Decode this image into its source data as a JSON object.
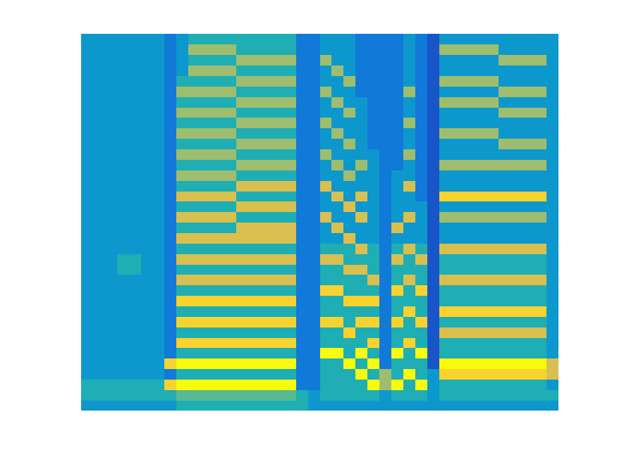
{
  "chart_data": {
    "type": "heatmap",
    "tick_labels": false,
    "color": "parula",
    "zlim": [
      0,
      9
    ],
    "cells": [
      [
        3,
        3,
        3,
        3,
        3,
        3,
        3,
        3,
        4,
        4,
        4,
        4,
        4,
        4,
        4,
        4,
        4,
        4,
        4,
        3,
        3,
        3,
        3,
        3,
        3,
        3,
        3,
        3,
        3,
        3,
        3,
        3,
        3,
        3,
        3,
        3,
        3,
        3,
        3,
        3
      ],
      [
        4,
        4,
        4,
        4,
        4,
        4,
        4,
        4,
        5,
        5,
        5,
        5,
        5,
        5,
        5,
        5,
        5,
        5,
        4,
        3,
        4,
        4,
        4,
        4,
        4,
        3,
        4,
        4,
        4,
        3,
        4,
        4,
        4,
        4,
        4,
        4,
        4,
        4,
        4,
        4
      ],
      [
        4,
        4,
        4,
        4,
        4,
        4,
        4,
        8,
        9,
        9,
        9,
        9,
        9,
        9,
        9,
        9,
        9,
        9,
        2,
        2,
        4,
        4,
        4,
        4,
        9,
        6,
        9,
        4,
        9,
        3,
        4,
        4,
        4,
        4,
        4,
        4,
        4,
        4,
        4,
        3
      ],
      [
        3,
        3,
        3,
        3,
        3,
        3,
        3,
        2,
        4,
        4,
        4,
        4,
        4,
        4,
        4,
        4,
        4,
        4,
        2,
        2,
        4,
        4,
        4,
        9,
        4,
        6,
        4,
        9,
        4,
        3,
        8,
        8,
        8,
        8,
        8,
        8,
        8,
        8,
        8,
        7
      ],
      [
        3,
        3,
        3,
        3,
        3,
        3,
        3,
        8,
        9,
        9,
        9,
        9,
        9,
        9,
        9,
        9,
        9,
        9,
        2,
        2,
        4,
        4,
        9,
        4,
        9,
        2,
        4,
        4,
        4,
        1,
        9,
        9,
        9,
        9,
        9,
        9,
        9,
        9,
        9,
        7
      ],
      [
        3,
        3,
        3,
        3,
        3,
        3,
        3,
        2,
        4,
        4,
        4,
        4,
        4,
        4,
        4,
        4,
        4,
        4,
        2,
        2,
        9,
        9,
        4,
        9,
        4,
        2,
        9,
        4,
        9,
        1,
        4,
        4,
        4,
        4,
        4,
        4,
        4,
        4,
        4,
        3
      ],
      [
        3,
        3,
        3,
        3,
        3,
        3,
        3,
        2,
        8,
        8,
        8,
        8,
        8,
        8,
        8,
        8,
        8,
        8,
        2,
        2,
        4,
        4,
        4,
        4,
        8,
        2,
        4,
        8,
        4,
        1,
        4,
        4,
        4,
        4,
        4,
        4,
        4,
        4,
        4,
        3
      ],
      [
        3,
        3,
        3,
        3,
        3,
        3,
        3,
        2,
        4,
        4,
        4,
        4,
        4,
        4,
        4,
        4,
        4,
        4,
        2,
        2,
        4,
        4,
        8,
        4,
        4,
        2,
        4,
        4,
        4,
        1,
        7,
        7,
        7,
        7,
        7,
        7,
        7,
        7,
        7,
        3
      ],
      [
        3,
        3,
        3,
        3,
        3,
        3,
        3,
        2,
        8,
        8,
        8,
        8,
        8,
        8,
        8,
        8,
        8,
        8,
        2,
        2,
        8,
        8,
        4,
        8,
        8,
        2,
        8,
        4,
        8,
        1,
        4,
        4,
        4,
        4,
        4,
        4,
        4,
        4,
        4,
        3
      ],
      [
        3,
        3,
        3,
        3,
        3,
        3,
        3,
        2,
        4,
        4,
        4,
        4,
        4,
        4,
        4,
        4,
        4,
        4,
        2,
        2,
        4,
        4,
        4,
        4,
        4,
        2,
        4,
        8,
        4,
        1,
        8,
        8,
        8,
        8,
        8,
        8,
        8,
        8,
        8,
        3
      ],
      [
        3,
        3,
        3,
        3,
        3,
        3,
        3,
        2,
        8,
        8,
        8,
        8,
        8,
        8,
        8,
        8,
        8,
        8,
        2,
        2,
        4,
        4,
        8,
        8,
        8,
        2,
        4,
        4,
        4,
        1,
        4,
        4,
        4,
        4,
        4,
        4,
        4,
        4,
        4,
        3
      ],
      [
        3,
        3,
        3,
        3,
        3,
        3,
        3,
        2,
        4,
        4,
        4,
        4,
        4,
        4,
        4,
        4,
        4,
        4,
        2,
        2,
        8,
        8,
        4,
        4,
        4,
        2,
        8,
        4,
        8,
        1,
        4,
        4,
        4,
        4,
        4,
        4,
        4,
        4,
        4,
        3
      ],
      [
        3,
        3,
        3,
        3,
        3,
        3,
        3,
        2,
        7,
        7,
        7,
        7,
        7,
        7,
        7,
        7,
        7,
        7,
        2,
        2,
        4,
        4,
        4,
        4,
        7,
        2,
        4,
        7,
        4,
        1,
        7,
        7,
        7,
        7,
        7,
        7,
        7,
        7,
        7,
        3
      ],
      [
        3,
        3,
        3,
        4,
        4,
        3,
        3,
        2,
        4,
        4,
        4,
        4,
        4,
        4,
        4,
        4,
        4,
        4,
        2,
        2,
        4,
        4,
        7,
        7,
        4,
        2,
        4,
        4,
        4,
        1,
        4,
        4,
        4,
        4,
        4,
        4,
        4,
        4,
        4,
        3
      ],
      [
        3,
        3,
        3,
        4,
        4,
        3,
        3,
        2,
        7,
        7,
        7,
        7,
        7,
        7,
        7,
        7,
        7,
        7,
        2,
        2,
        7,
        7,
        4,
        4,
        4,
        2,
        7,
        4,
        7,
        1,
        4,
        4,
        4,
        4,
        4,
        4,
        4,
        4,
        4,
        3
      ],
      [
        3,
        3,
        3,
        3,
        3,
        3,
        3,
        2,
        4,
        4,
        4,
        4,
        4,
        4,
        4,
        4,
        4,
        4,
        2,
        2,
        4,
        4,
        4,
        7,
        4,
        2,
        4,
        7,
        4,
        1,
        7,
        7,
        7,
        7,
        7,
        7,
        7,
        7,
        7,
        3
      ],
      [
        3,
        3,
        3,
        3,
        3,
        3,
        3,
        2,
        7,
        7,
        7,
        7,
        7,
        7,
        7,
        7,
        7,
        7,
        2,
        2,
        3,
        3,
        7,
        3,
        3,
        2,
        3,
        3,
        3,
        1,
        3,
        3,
        3,
        3,
        3,
        3,
        3,
        3,
        3,
        3
      ],
      [
        3,
        3,
        3,
        3,
        3,
        3,
        3,
        2,
        4,
        4,
        4,
        4,
        4,
        7,
        7,
        7,
        7,
        7,
        2,
        2,
        3,
        7,
        3,
        3,
        3,
        2,
        7,
        3,
        3,
        1,
        3,
        3,
        3,
        3,
        3,
        3,
        3,
        3,
        3,
        3
      ],
      [
        3,
        3,
        3,
        3,
        3,
        3,
        3,
        2,
        7,
        7,
        7,
        7,
        7,
        4,
        4,
        4,
        4,
        4,
        2,
        2,
        7,
        3,
        3,
        7,
        3,
        2,
        3,
        7,
        3,
        1,
        6,
        6,
        6,
        6,
        6,
        6,
        6,
        6,
        6,
        3
      ],
      [
        3,
        3,
        3,
        3,
        3,
        3,
        3,
        2,
        4,
        4,
        4,
        4,
        4,
        7,
        7,
        7,
        7,
        7,
        2,
        2,
        3,
        3,
        7,
        3,
        3,
        2,
        3,
        3,
        3,
        1,
        3,
        3,
        3,
        3,
        3,
        3,
        3,
        3,
        3,
        3
      ],
      [
        3,
        3,
        3,
        3,
        3,
        3,
        3,
        2,
        7,
        7,
        7,
        7,
        7,
        4,
        4,
        4,
        4,
        4,
        2,
        2,
        3,
        7,
        3,
        7,
        3,
        2,
        3,
        3,
        2,
        1,
        8,
        8,
        8,
        8,
        8,
        8,
        8,
        8,
        8,
        3
      ],
      [
        3,
        3,
        3,
        3,
        3,
        3,
        3,
        2,
        4,
        4,
        4,
        4,
        4,
        7,
        7,
        7,
        7,
        7,
        2,
        2,
        7,
        3,
        3,
        3,
        3,
        2,
        3,
        7,
        2,
        1,
        3,
        3,
        3,
        3,
        3,
        3,
        3,
        3,
        3,
        3
      ],
      [
        3,
        3,
        3,
        3,
        3,
        3,
        3,
        2,
        6,
        6,
        6,
        6,
        6,
        4,
        4,
        4,
        4,
        4,
        2,
        2,
        3,
        3,
        6,
        3,
        3,
        2,
        3,
        3,
        2,
        1,
        3,
        3,
        3,
        3,
        3,
        3,
        3,
        3,
        3,
        3
      ],
      [
        3,
        3,
        3,
        3,
        3,
        3,
        3,
        2,
        4,
        4,
        4,
        4,
        4,
        6,
        6,
        6,
        6,
        6,
        2,
        2,
        3,
        6,
        3,
        6,
        3,
        2,
        2,
        3,
        2,
        1,
        6,
        6,
        6,
        6,
        6,
        6,
        6,
        6,
        6,
        3
      ],
      [
        3,
        3,
        3,
        3,
        3,
        3,
        3,
        2,
        6,
        6,
        6,
        6,
        6,
        4,
        4,
        4,
        4,
        4,
        2,
        2,
        6,
        3,
        3,
        3,
        3,
        2,
        2,
        6,
        2,
        1,
        3,
        3,
        3,
        3,
        3,
        3,
        3,
        3,
        3,
        3
      ],
      [
        3,
        3,
        3,
        3,
        3,
        3,
        3,
        2,
        4,
        4,
        4,
        4,
        4,
        6,
        6,
        6,
        6,
        6,
        2,
        2,
        3,
        3,
        6,
        3,
        2,
        2,
        2,
        3,
        2,
        1,
        3,
        3,
        3,
        3,
        3,
        6,
        6,
        6,
        6,
        3
      ],
      [
        3,
        3,
        3,
        3,
        3,
        3,
        3,
        2,
        6,
        6,
        6,
        6,
        6,
        4,
        4,
        4,
        4,
        4,
        2,
        2,
        3,
        6,
        3,
        3,
        2,
        2,
        2,
        3,
        2,
        1,
        6,
        6,
        6,
        6,
        6,
        3,
        3,
        3,
        3,
        3
      ],
      [
        3,
        3,
        3,
        3,
        3,
        3,
        3,
        2,
        4,
        4,
        4,
        4,
        4,
        6,
        6,
        6,
        6,
        6,
        2,
        2,
        6,
        3,
        3,
        3,
        2,
        2,
        2,
        6,
        2,
        1,
        3,
        3,
        3,
        3,
        3,
        3,
        3,
        3,
        3,
        3
      ],
      [
        3,
        3,
        3,
        3,
        3,
        3,
        3,
        2,
        6,
        6,
        6,
        6,
        6,
        4,
        4,
        4,
        4,
        4,
        2,
        2,
        3,
        3,
        6,
        3,
        2,
        2,
        2,
        3,
        2,
        1,
        3,
        3,
        3,
        3,
        3,
        6,
        6,
        6,
        6,
        3
      ],
      [
        3,
        3,
        3,
        3,
        3,
        3,
        3,
        2,
        4,
        4,
        4,
        4,
        4,
        6,
        6,
        6,
        6,
        6,
        2,
        2,
        3,
        6,
        3,
        3,
        2,
        2,
        2,
        3,
        2,
        1,
        6,
        6,
        6,
        6,
        6,
        3,
        3,
        3,
        3,
        3
      ],
      [
        3,
        3,
        3,
        3,
        3,
        3,
        3,
        2,
        6,
        6,
        6,
        6,
        6,
        4,
        4,
        4,
        4,
        4,
        2,
        2,
        6,
        3,
        3,
        2,
        2,
        2,
        2,
        6,
        2,
        1,
        3,
        3,
        3,
        3,
        3,
        6,
        6,
        6,
        6,
        3
      ],
      [
        3,
        3,
        3,
        3,
        3,
        3,
        3,
        2,
        4,
        4,
        4,
        4,
        4,
        6,
        6,
        6,
        6,
        6,
        2,
        2,
        3,
        3,
        6,
        2,
        2,
        2,
        2,
        3,
        2,
        1,
        6,
        6,
        6,
        6,
        6,
        3,
        3,
        3,
        3,
        3
      ],
      [
        3,
        3,
        3,
        3,
        3,
        3,
        3,
        2,
        3,
        6,
        6,
        6,
        6,
        4,
        4,
        4,
        4,
        4,
        2,
        2,
        3,
        6,
        3,
        2,
        2,
        2,
        2,
        3,
        2,
        1,
        3,
        3,
        3,
        3,
        3,
        3,
        3,
        3,
        3,
        3
      ],
      [
        3,
        3,
        3,
        3,
        3,
        3,
        3,
        2,
        3,
        4,
        4,
        4,
        4,
        6,
        6,
        6,
        6,
        6,
        2,
        2,
        6,
        3,
        3,
        2,
        2,
        2,
        2,
        3,
        2,
        1,
        3,
        3,
        3,
        3,
        3,
        6,
        6,
        6,
        6,
        3
      ],
      [
        3,
        3,
        3,
        3,
        3,
        3,
        3,
        2,
        3,
        6,
        6,
        6,
        6,
        4,
        4,
        4,
        4,
        4,
        2,
        2,
        3,
        3,
        3,
        2,
        2,
        2,
        2,
        3,
        2,
        1,
        6,
        6,
        6,
        6,
        6,
        3,
        3,
        3,
        3,
        3
      ],
      [
        3,
        3,
        3,
        3,
        3,
        3,
        3,
        2,
        3,
        4,
        4,
        4,
        4,
        4,
        4,
        4,
        4,
        4,
        2,
        2,
        3,
        3,
        3,
        2,
        2,
        2,
        2,
        3,
        2,
        1,
        3,
        3,
        3,
        3,
        3,
        3,
        3,
        3,
        3,
        3
      ]
    ]
  }
}
